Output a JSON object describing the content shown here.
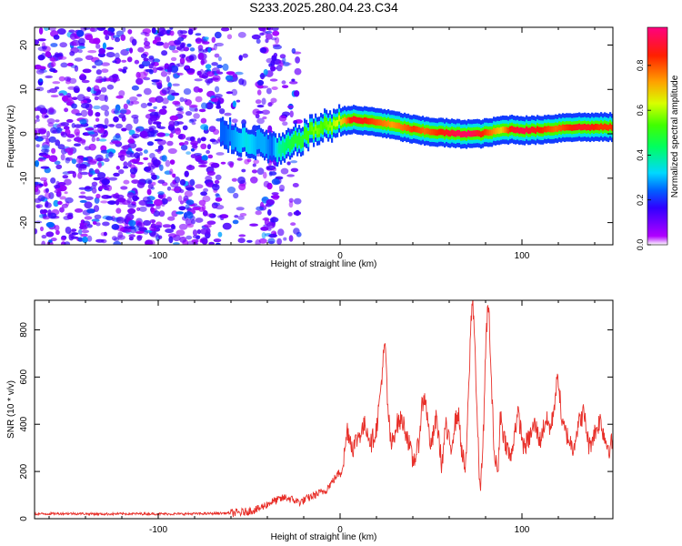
{
  "figure": {
    "title": "S233.2025.280.04.23.C34"
  },
  "chart_data": [
    {
      "type": "heatmap",
      "title": "S233.2025.280.04.23.C34",
      "xlabel": "Height of straight line (km)",
      "ylabel": "Frequency (Hz)",
      "xlim": [
        -168,
        150
      ],
      "ylim": [
        -25,
        24
      ],
      "xticks": [
        -100,
        0,
        100
      ],
      "xtick_labels": [
        "-100",
        "0",
        "100"
      ],
      "yticks": [
        -20,
        -10,
        0,
        10,
        20
      ],
      "ytick_labels": [
        "-20",
        "-10",
        "0",
        "10",
        "20"
      ],
      "colorbar": {
        "label": "Normalized spectral amplitude",
        "range": [
          0,
          0.97
        ],
        "ticks": [
          0,
          0.2,
          0.4,
          0.6,
          0.8
        ],
        "tick_labels": [
          "0.0",
          "0.2",
          "0.4",
          "0.6",
          "0.8"
        ],
        "colormap": "rainbow"
      },
      "ridge": {
        "description": "dominant frequency track",
        "x": [
          -64,
          -58,
          -52,
          -46,
          -42,
          -38,
          -34,
          -30,
          -26,
          -22,
          -18,
          -14,
          -10,
          -6,
          -2,
          2,
          6,
          10,
          16,
          22,
          28,
          34,
          40,
          46,
          52,
          58,
          64,
          70,
          76,
          82,
          88,
          94,
          100,
          106,
          112,
          118,
          124,
          130,
          136,
          142,
          150
        ],
        "freq": [
          0,
          -1,
          -1.5,
          -2,
          -2.5,
          -3,
          -4,
          -3,
          -2,
          -1,
          0,
          1,
          1.5,
          2,
          2.5,
          3,
          3.2,
          3,
          2.8,
          2.5,
          2,
          1.5,
          1,
          0.6,
          0.4,
          0.2,
          0,
          0,
          0,
          0.3,
          0.8,
          1,
          0.8,
          0.8,
          1,
          1.2,
          1.5,
          1.5,
          1.5,
          1.5,
          1.5
        ],
        "amplitude": [
          0.25,
          0.3,
          0.35,
          0.3,
          0.3,
          0.25,
          0.4,
          0.45,
          0.5,
          0.5,
          0.55,
          0.6,
          0.55,
          0.6,
          0.65,
          0.75,
          0.9,
          0.9,
          0.85,
          0.8,
          0.75,
          0.8,
          0.85,
          0.8,
          0.85,
          0.9,
          0.95,
          0.97,
          0.9,
          0.8,
          0.7,
          0.9,
          0.95,
          0.9,
          0.85,
          0.8,
          0.85,
          0.9,
          0.9,
          0.85,
          0.85
        ]
      },
      "noise_region": {
        "x_range": [
          -168,
          -22
        ],
        "level": [
          0.05,
          0.3
        ]
      }
    },
    {
      "type": "line",
      "xlabel": "Height of straight line (km)",
      "ylabel": "SNR (10 * v/v)",
      "xlim": [
        -168,
        150
      ],
      "ylim": [
        0,
        925
      ],
      "xticks": [
        -100,
        0,
        100
      ],
      "xtick_labels": [
        "-100",
        "0",
        "100"
      ],
      "yticks": [
        0,
        200,
        400,
        600,
        800
      ],
      "ytick_labels": [
        "0",
        "200",
        "400",
        "600",
        "800"
      ],
      "color": "#e8302a",
      "series": [
        {
          "name": "SNR",
          "x": [
            -168,
            -150,
            -130,
            -110,
            -90,
            -70,
            -55,
            -45,
            -38,
            -30,
            -22,
            -14,
            -8,
            -4,
            0,
            2,
            4,
            7,
            10,
            14,
            17,
            20,
            22,
            24,
            25,
            26,
            28,
            31,
            34,
            37,
            40,
            43,
            45,
            47,
            48,
            50,
            53,
            56,
            58,
            59,
            61,
            63,
            65,
            67,
            69,
            71,
            72,
            73,
            74,
            75,
            77,
            79,
            80,
            81,
            82,
            83,
            85,
            87,
            88,
            90,
            92,
            94,
            96,
            98,
            101,
            104,
            107,
            110,
            113,
            116,
            119,
            120,
            122,
            125,
            128,
            131,
            134,
            137,
            139,
            141,
            143,
            146,
            148,
            150
          ],
          "y": [
            20,
            22,
            20,
            21,
            20,
            22,
            25,
            40,
            70,
            90,
            70,
            100,
            120,
            160,
            200,
            250,
            380,
            300,
            350,
            400,
            320,
            380,
            520,
            700,
            720,
            500,
            300,
            400,
            420,
            350,
            240,
            300,
            480,
            520,
            420,
            300,
            430,
            220,
            400,
            350,
            300,
            400,
            450,
            280,
            200,
            600,
            850,
            920,
            780,
            500,
            100,
            400,
            700,
            880,
            860,
            600,
            250,
            200,
            450,
            350,
            300,
            250,
            380,
            440,
            300,
            340,
            400,
            330,
            420,
            380,
            560,
            600,
            400,
            350,
            300,
            400,
            450,
            300,
            350,
            380,
            420,
            330,
            300,
            330
          ]
        }
      ]
    }
  ]
}
